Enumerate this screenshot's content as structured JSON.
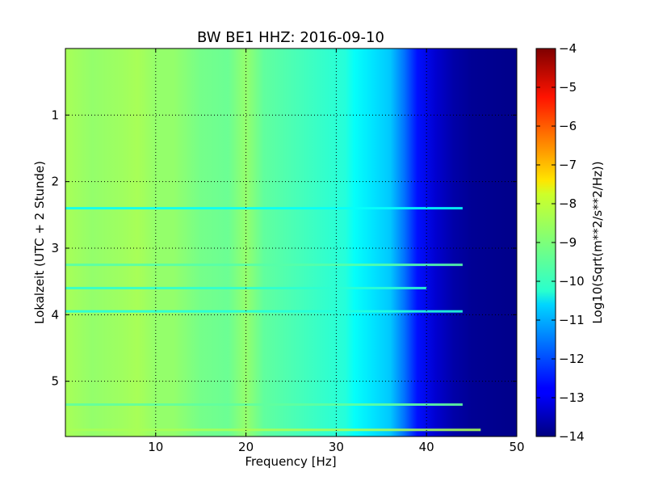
{
  "chart_data": {
    "type": "heatmap",
    "title": "BW BE1 HHZ: 2016-09-10",
    "xlabel": "Frequency [Hz]",
    "ylabel": "Lokalzeit (UTC + 2 Stunde)",
    "xlim": [
      0,
      50
    ],
    "ylim": [
      5.83,
      0
    ],
    "x_ticks": [
      10,
      20,
      30,
      40,
      50
    ],
    "y_ticks": [
      1,
      2,
      3,
      4,
      5
    ],
    "grid": true,
    "colorbar": {
      "label": "Log10(Sqrt(m**2/s**2/Hz))",
      "range": [
        -14,
        -4
      ],
      "ticks": [
        -4,
        -5,
        -6,
        -7,
        -8,
        -9,
        -10,
        -11,
        -12,
        -13,
        -14
      ],
      "colormap": "jet"
    },
    "frequency_profile": {
      "x": [
        0,
        3,
        6,
        8,
        10,
        12,
        15,
        18,
        20,
        22,
        25,
        28,
        31,
        32,
        34,
        36,
        37.5,
        39,
        41,
        43,
        45,
        50
      ],
      "values": [
        -8.6,
        -8.8,
        -8.7,
        -8.6,
        -8.8,
        -8.8,
        -9.1,
        -9.2,
        -8.8,
        -9.3,
        -9.5,
        -9.7,
        -9.9,
        -10.2,
        -10.5,
        -10.8,
        -11.6,
        -12.6,
        -13.2,
        -13.6,
        -13.8,
        -13.9
      ]
    },
    "horizontal_bands": [
      {
        "time": 2.4,
        "level": -10.2,
        "max_freq": 44
      },
      {
        "time": 3.25,
        "level": -9.4,
        "max_freq": 44
      },
      {
        "time": 3.6,
        "level": -9.8,
        "max_freq": 40
      },
      {
        "time": 3.95,
        "level": -9.9,
        "max_freq": 44
      },
      {
        "time": 5.35,
        "level": -9.3,
        "max_freq": 44
      },
      {
        "time": 5.73,
        "level": -8.6,
        "max_freq": 46
      }
    ]
  }
}
